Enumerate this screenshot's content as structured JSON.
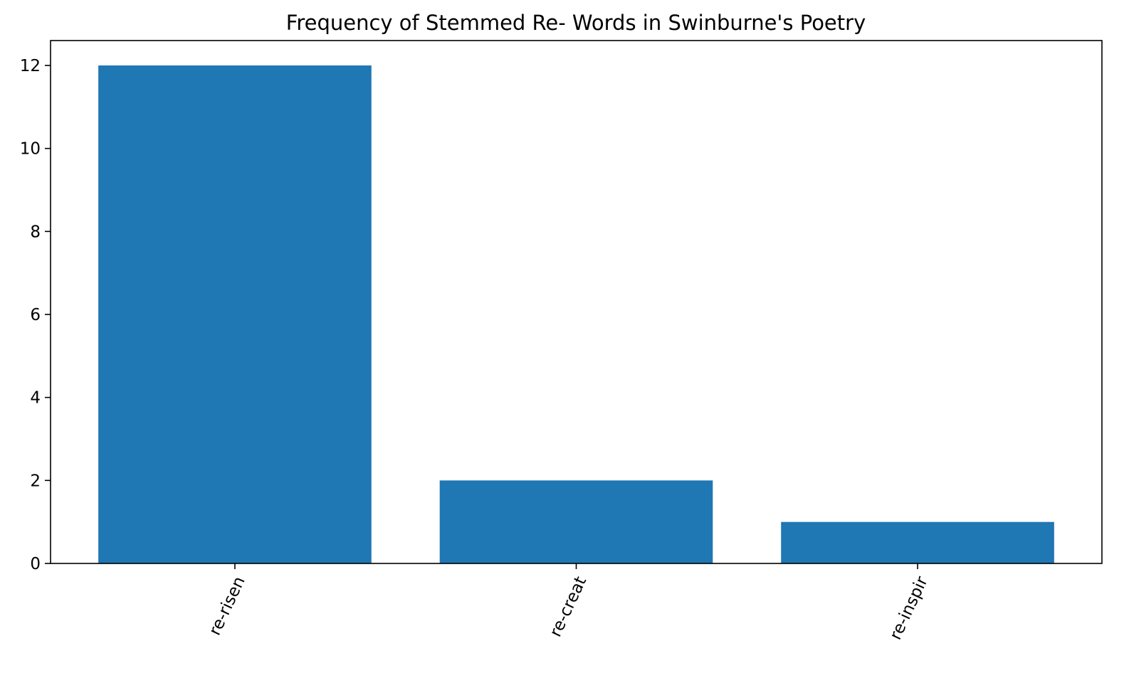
{
  "chart_data": {
    "type": "bar",
    "title": "Frequency of Stemmed Re- Words in Swinburne's Poetry",
    "xlabel": "",
    "ylabel": "",
    "categories": [
      "re-risen",
      "re-creat",
      "re-inspir"
    ],
    "values": [
      12,
      2,
      1
    ],
    "ylim": [
      0,
      12.6
    ],
    "yticks": [
      0,
      2,
      4,
      6,
      8,
      10,
      12
    ],
    "x_tick_rotation_deg": 65,
    "grid": false,
    "bar_color": "#1f77b4"
  }
}
